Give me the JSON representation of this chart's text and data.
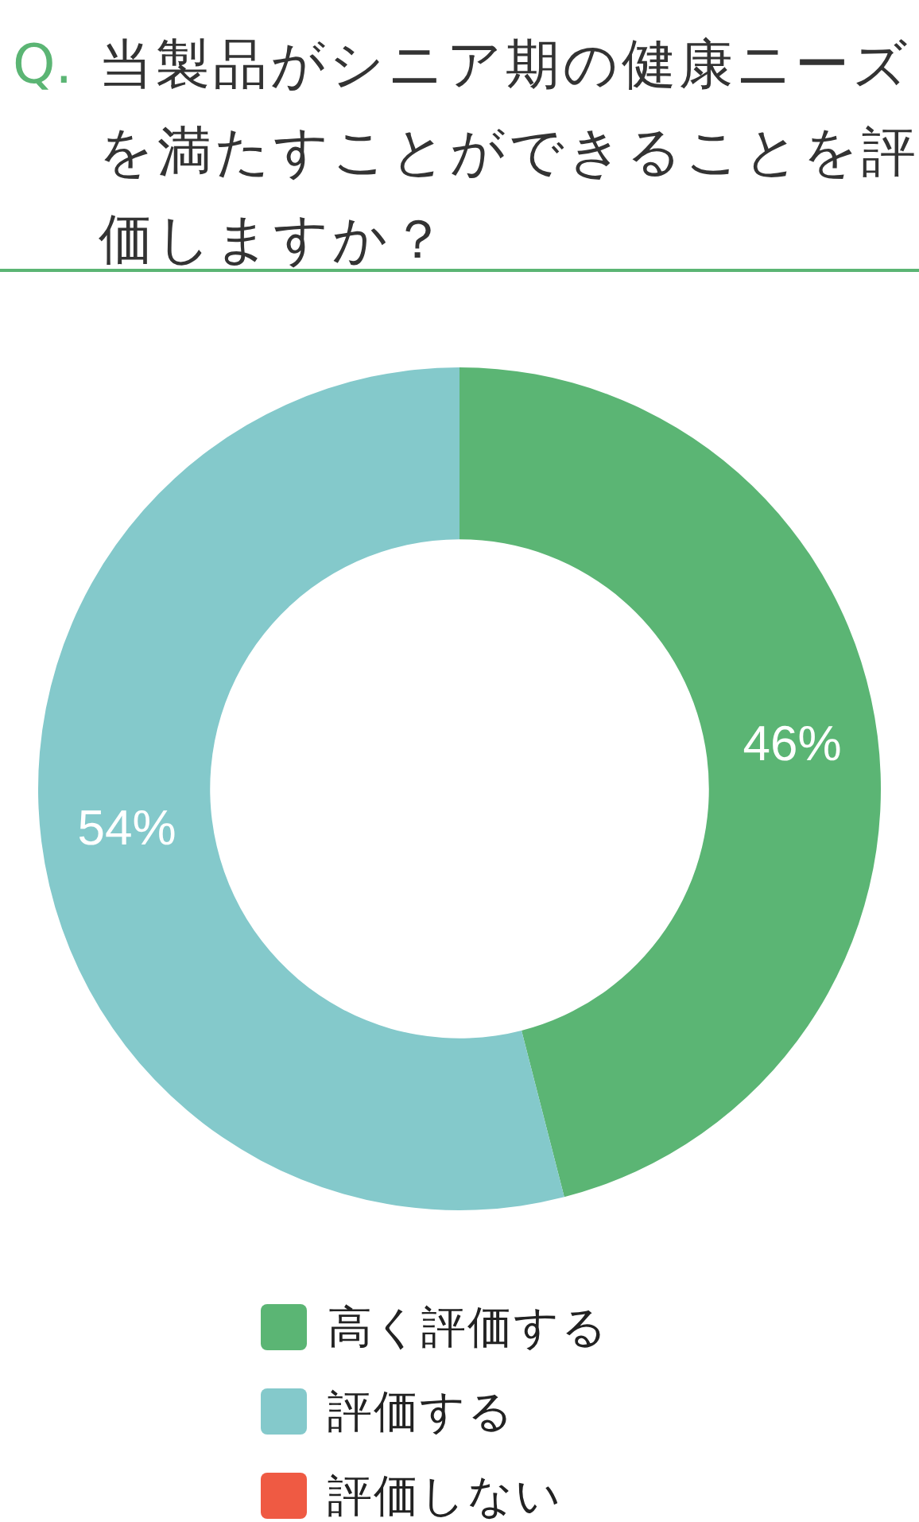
{
  "chart_data": {
    "type": "donut",
    "title": "Q. 当製品がシニア期の健康ニーズを満たすことができることを評価しますか？",
    "categories": [
      "高く評価する",
      "評価する",
      "評価しない"
    ],
    "values": [
      46,
      54,
      0
    ],
    "colors": [
      "#5bb574",
      "#84c9cb",
      "#ef5a43"
    ],
    "value_labels": [
      "46%",
      "54%",
      null
    ],
    "legend": "bottom"
  }
}
